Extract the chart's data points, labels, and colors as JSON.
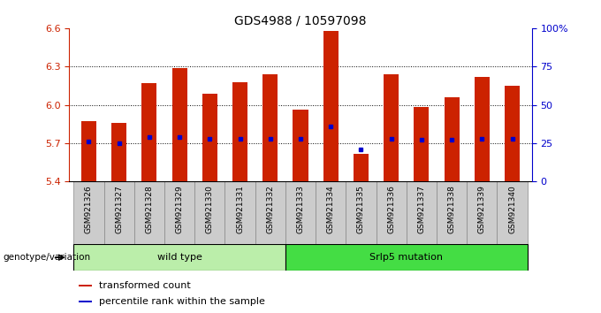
{
  "title": "GDS4988 / 10597098",
  "samples": [
    "GSM921326",
    "GSM921327",
    "GSM921328",
    "GSM921329",
    "GSM921330",
    "GSM921331",
    "GSM921332",
    "GSM921333",
    "GSM921334",
    "GSM921335",
    "GSM921336",
    "GSM921337",
    "GSM921338",
    "GSM921339",
    "GSM921340"
  ],
  "transformed_count": [
    5.87,
    5.86,
    6.17,
    6.29,
    6.09,
    6.18,
    6.24,
    5.96,
    6.58,
    5.62,
    6.24,
    5.98,
    6.06,
    6.22,
    6.15
  ],
  "percentile_rank": [
    26,
    25,
    29,
    29,
    28,
    28,
    28,
    28,
    36,
    21,
    28,
    27,
    27,
    28,
    28
  ],
  "ylim": [
    5.4,
    6.6
  ],
  "yticks": [
    5.4,
    5.7,
    6.0,
    6.3,
    6.6
  ],
  "right_yticks": [
    0,
    25,
    50,
    75,
    100
  ],
  "bar_color": "#cc2200",
  "dot_color": "#0000cc",
  "bar_bottom": 5.4,
  "wild_type_samples": 7,
  "wild_type_label": "wild type",
  "mutation_label": "Srlp5 mutation",
  "group_color_wt": "#bbeeaa",
  "group_color_mut": "#44dd44",
  "left_axis_color": "#cc2200",
  "right_axis_color": "#0000cc",
  "legend_items": [
    "transformed count",
    "percentile rank within the sample"
  ],
  "genotype_label": "genotype/variation",
  "title_fontsize": 10,
  "tick_fontsize": 8,
  "sample_fontsize": 6.5,
  "group_fontsize": 8
}
